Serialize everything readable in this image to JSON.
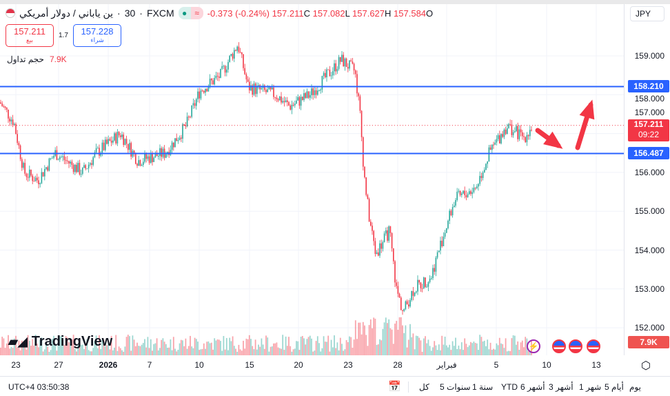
{
  "symbol": {
    "name": "ين ياباني / دولار أمريكي",
    "interval": "30",
    "source": "FXCM",
    "flag_icon": "us-flag-icon"
  },
  "ohlc": {
    "open_label": "O",
    "open": "157.584",
    "high_label": "H",
    "high": "157.627",
    "low_label": "L",
    "low": "157.082",
    "close_label": "C",
    "close": "157.211",
    "change": "-0.373 (-0.24%)"
  },
  "trade": {
    "sell_price": "157.211",
    "sell_label": "بيع",
    "spread": "1.7",
    "buy_price": "157.228",
    "buy_label": "شراء"
  },
  "volume": {
    "label": "حجم تداول",
    "value": "7.9K",
    "current_badge": "7.9K"
  },
  "currency_button": "JPY",
  "logo": "TradingView",
  "colors": {
    "up": "#26a69a",
    "down": "#f23645",
    "line": "#2962ff",
    "arrow": "#f23645"
  },
  "price_axis": {
    "ticks": [
      "159.000",
      "158.000",
      "157.000",
      "156.000",
      "155.000",
      "154.000",
      "153.000",
      "152.000"
    ]
  },
  "levels": {
    "upper": "158.210",
    "lower": "156.487",
    "current": "157.211",
    "countdown": "09:22"
  },
  "time_axis": [
    "23",
    "27",
    "2026",
    "7",
    "10",
    "15",
    "20",
    "23",
    "28",
    "فبراير",
    "5",
    "10",
    "13"
  ],
  "bottom": {
    "timezone": "UTC+4 03:50:38",
    "ranges": [
      "يوم",
      "5 أيام",
      "1 شهر",
      "3 أشهر",
      "6 أشهر",
      "YTD",
      "1 سنة",
      "5 سنوات",
      "كل"
    ]
  },
  "chart_data": {
    "type": "candlestick",
    "ylim": [
      151.9,
      159.6
    ],
    "price_ticks": [
      159,
      158,
      157,
      156,
      155,
      154,
      153,
      152
    ],
    "horizontal_lines": [
      158.21,
      156.487
    ],
    "last_price": 157.211
  }
}
